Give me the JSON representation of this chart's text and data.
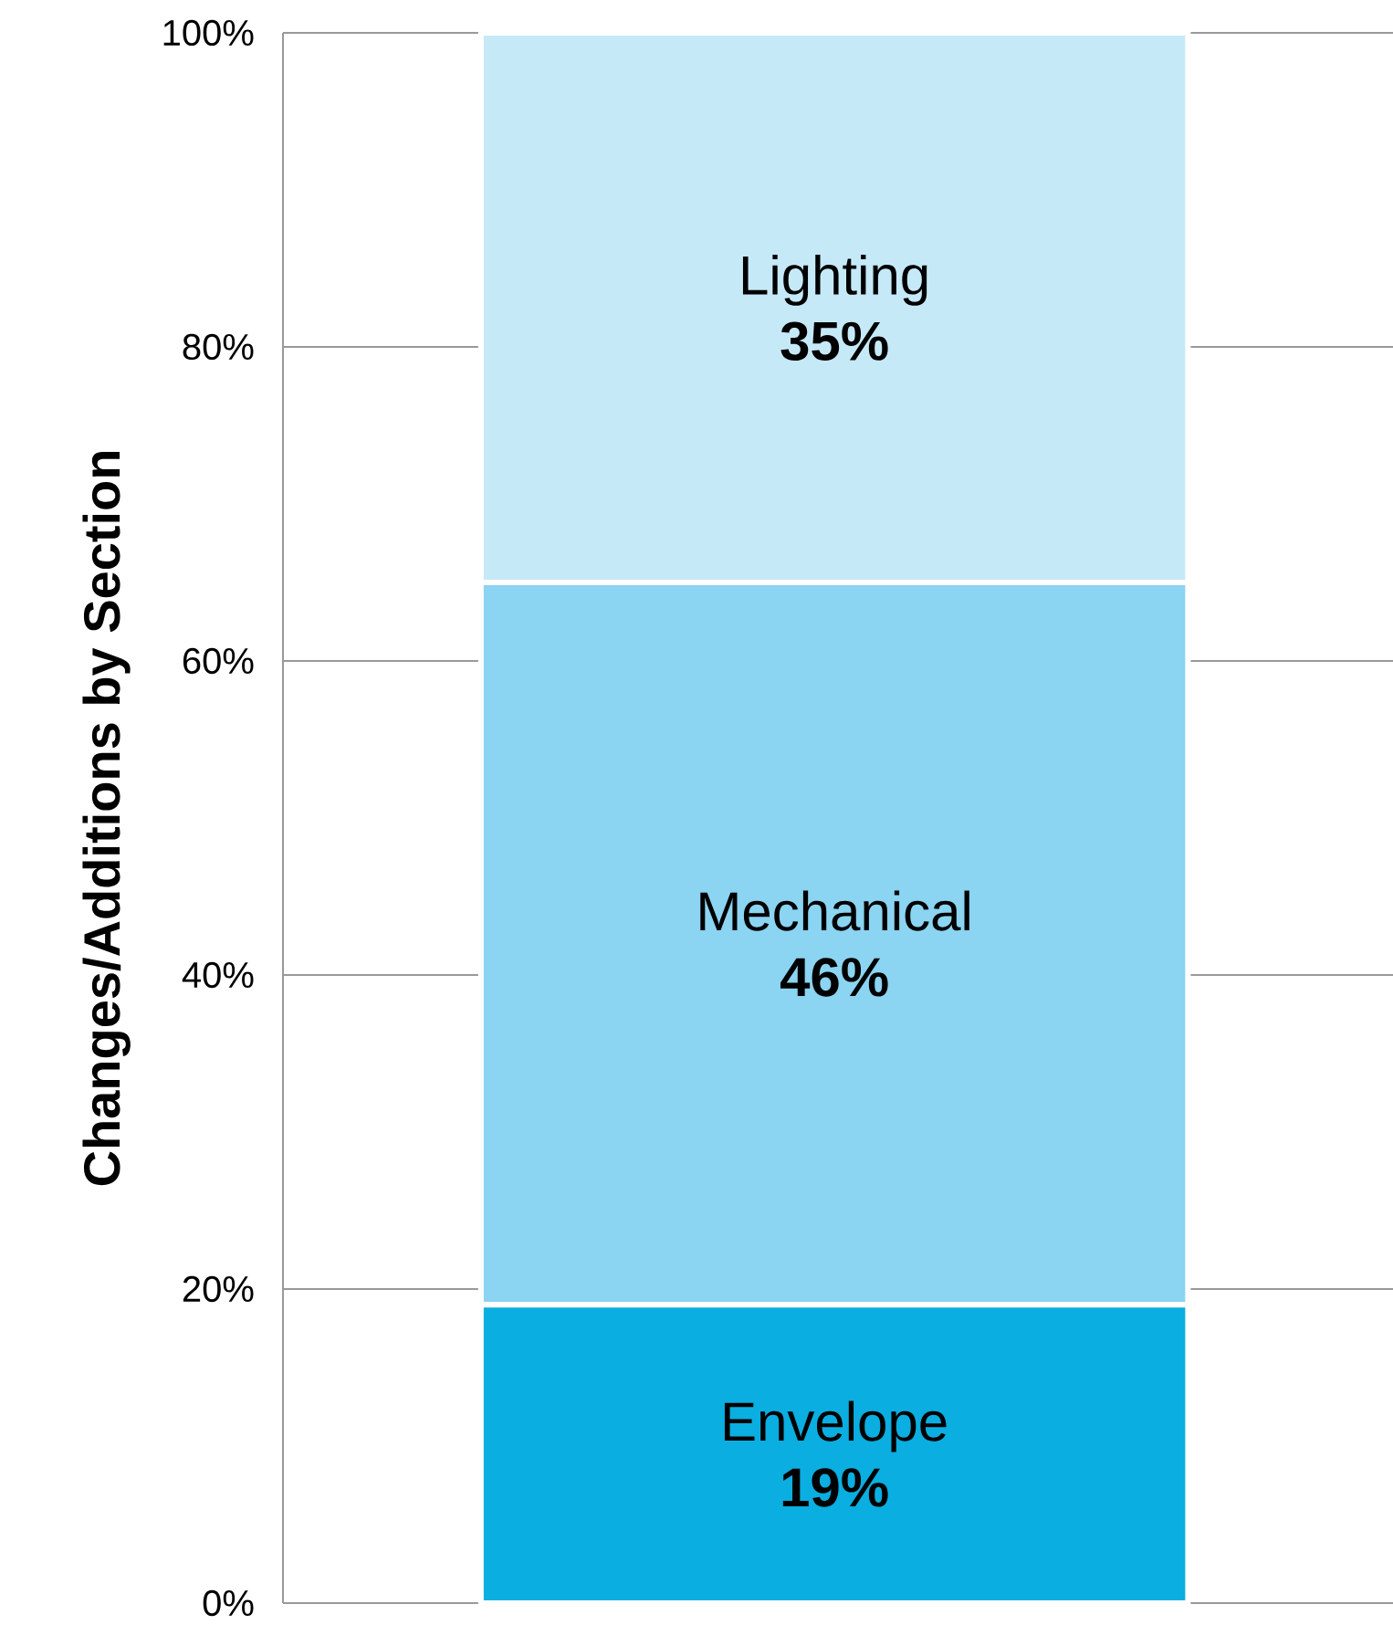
{
  "chart_data": {
    "type": "bar",
    "stacked": true,
    "categories": [
      null
    ],
    "ylabel": "Changes/Additions by Section",
    "ylim": [
      0,
      100
    ],
    "yticks": [
      {
        "value": 0,
        "label": "0%"
      },
      {
        "value": 20,
        "label": "20%"
      },
      {
        "value": 40,
        "label": "40%"
      },
      {
        "value": 60,
        "label": "60%"
      },
      {
        "value": 80,
        "label": "80%"
      },
      {
        "value": 100,
        "label": "100%"
      }
    ],
    "grid": "y",
    "series": [
      {
        "name": "Envelope",
        "color": "#0aaee0",
        "values": [
          19
        ],
        "value_labels": [
          "19%"
        ]
      },
      {
        "name": "Mechanical",
        "color": "#8bd4f2",
        "values": [
          46
        ],
        "value_labels": [
          "46%"
        ]
      },
      {
        "name": "Lighting",
        "color": "#c6e9f8",
        "values": [
          35
        ],
        "value_labels": [
          "35%"
        ]
      }
    ]
  }
}
